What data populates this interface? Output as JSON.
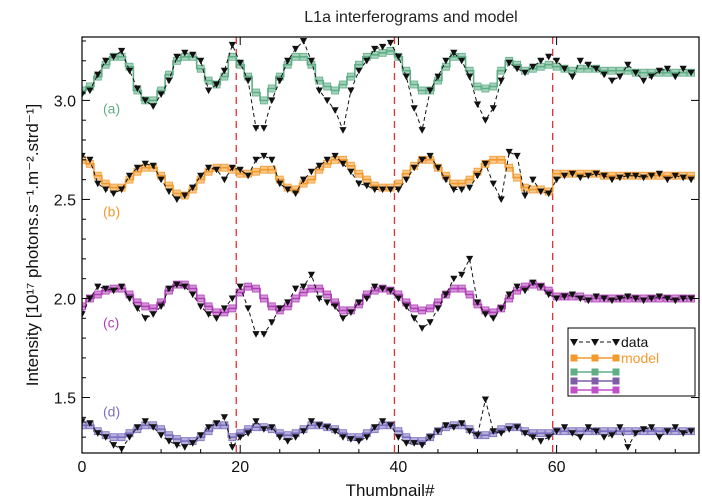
{
  "chart_data": {
    "type": "line",
    "title": "L1a interferograms and model",
    "xlabel": "Thumbnail#",
    "ylabel": "Intensity [10¹⁷ photons.s⁻¹.m⁻².strd⁻¹]",
    "xlim": [
      0,
      78
    ],
    "ylim": [
      1.22,
      3.32
    ],
    "x_ticks": [
      0,
      20,
      40,
      60
    ],
    "x_tick_labels": [
      "0",
      "20",
      "40",
      "60"
    ],
    "y_ticks": [
      1.5,
      2.0,
      2.5,
      3.0
    ],
    "y_tick_labels": [
      "1.5",
      "2.0",
      "2.5",
      "3.0"
    ],
    "vlines": [
      19.5,
      39.5,
      59.5
    ],
    "vline_color": "#e03030",
    "legend": {
      "placement": "right",
      "entries": [
        {
          "label": "data",
          "color": "#111111",
          "style": "dashed-triangle"
        },
        {
          "label": "model",
          "color": "#f39a2d",
          "style": "solid-square"
        },
        {
          "label": "",
          "color": "#5fae86",
          "style": "solid-square"
        },
        {
          "label": "",
          "color": "#7d5ca8",
          "style": "solid-square"
        },
        {
          "label": "",
          "color": "#c050c8",
          "style": "solid-square"
        }
      ]
    },
    "series": [
      {
        "tag": "(a)",
        "tag_y": 2.96,
        "color": "#5fae86",
        "model": [
          3.05,
          3.07,
          3.12,
          3.18,
          3.22,
          3.22,
          3.17,
          3.05,
          3.0,
          3.0,
          3.05,
          3.13,
          3.2,
          3.22,
          3.22,
          3.16,
          3.1,
          3.08,
          3.12,
          3.22,
          3.18,
          3.12,
          3.04,
          3.0,
          3.06,
          3.12,
          3.18,
          3.22,
          3.22,
          3.18,
          3.1,
          3.07,
          3.05,
          3.08,
          3.12,
          3.18,
          3.22,
          3.23,
          3.24,
          3.25,
          3.22,
          3.15,
          3.08,
          3.05,
          3.05,
          3.1,
          3.17,
          3.22,
          3.22,
          3.15,
          3.07,
          3.06,
          3.07,
          3.15,
          3.2,
          3.18,
          3.15,
          3.16,
          3.17,
          3.18,
          3.17,
          3.16,
          3.15,
          3.16,
          3.16,
          3.16,
          3.15,
          3.15,
          3.15,
          3.15,
          3.14,
          3.14,
          3.14,
          3.14,
          3.14,
          3.14,
          3.14,
          3.14
        ],
        "data": [
          3.03,
          3.05,
          3.13,
          3.2,
          3.22,
          3.25,
          3.15,
          3.06,
          3.0,
          2.97,
          3.03,
          3.1,
          3.22,
          3.24,
          3.23,
          3.2,
          3.05,
          3.08,
          3.15,
          3.28,
          3.19,
          3.1,
          2.86,
          2.86,
          3.0,
          3.1,
          3.2,
          3.26,
          3.3,
          3.2,
          3.05,
          3.0,
          2.95,
          2.85,
          3.05,
          3.15,
          3.2,
          3.26,
          3.27,
          3.29,
          3.22,
          3.12,
          2.96,
          2.85,
          3.05,
          3.12,
          3.2,
          3.24,
          3.2,
          3.12,
          2.98,
          2.9,
          2.96,
          3.1,
          3.19,
          3.16,
          3.14,
          3.17,
          3.2,
          3.22,
          3.2,
          3.16,
          3.12,
          3.2,
          3.18,
          3.16,
          3.13,
          3.1,
          3.12,
          3.18,
          3.14,
          3.1,
          3.12,
          3.15,
          3.16,
          3.12,
          3.16,
          3.14
        ]
      },
      {
        "tag": "(b)",
        "tag_y": 2.44,
        "color": "#f39a2d",
        "model": [
          2.7,
          2.68,
          2.62,
          2.58,
          2.56,
          2.56,
          2.6,
          2.64,
          2.66,
          2.66,
          2.62,
          2.57,
          2.53,
          2.52,
          2.55,
          2.6,
          2.64,
          2.66,
          2.66,
          2.65,
          2.63,
          2.63,
          2.64,
          2.65,
          2.65,
          2.6,
          2.56,
          2.55,
          2.58,
          2.6,
          2.65,
          2.68,
          2.7,
          2.7,
          2.67,
          2.63,
          2.6,
          2.57,
          2.56,
          2.56,
          2.58,
          2.63,
          2.67,
          2.7,
          2.7,
          2.66,
          2.62,
          2.58,
          2.58,
          2.6,
          2.64,
          2.68,
          2.7,
          2.7,
          2.66,
          2.61,
          2.56,
          2.55,
          2.55,
          2.54,
          2.63,
          2.63,
          2.63,
          2.63,
          2.63,
          2.63,
          2.62,
          2.62,
          2.62,
          2.62,
          2.62,
          2.62,
          2.62,
          2.62,
          2.62,
          2.62,
          2.62,
          2.62
        ],
        "data": [
          2.72,
          2.7,
          2.58,
          2.55,
          2.53,
          2.55,
          2.62,
          2.66,
          2.68,
          2.67,
          2.6,
          2.54,
          2.5,
          2.52,
          2.56,
          2.62,
          2.66,
          2.65,
          2.6,
          2.66,
          2.65,
          2.62,
          2.7,
          2.72,
          2.7,
          2.58,
          2.55,
          2.53,
          2.6,
          2.64,
          2.67,
          2.7,
          2.72,
          2.68,
          2.64,
          2.58,
          2.57,
          2.55,
          2.55,
          2.55,
          2.55,
          2.6,
          2.66,
          2.7,
          2.72,
          2.66,
          2.6,
          2.55,
          2.55,
          2.56,
          2.62,
          2.68,
          2.58,
          2.5,
          2.74,
          2.72,
          2.52,
          2.6,
          2.54,
          2.53,
          2.6,
          2.62,
          2.63,
          2.61,
          2.62,
          2.63,
          2.62,
          2.6,
          2.61,
          2.62,
          2.62,
          2.61,
          2.62,
          2.63,
          2.6,
          2.62,
          2.61,
          2.6
        ]
      },
      {
        "tag": "(c)",
        "tag_y": 1.88,
        "color": "#b040b8",
        "model": [
          1.96,
          2.0,
          2.02,
          2.04,
          2.05,
          2.05,
          2.02,
          1.98,
          1.96,
          1.95,
          1.98,
          2.04,
          2.07,
          2.07,
          2.05,
          2.0,
          1.96,
          1.93,
          1.93,
          1.95,
          2.03,
          2.06,
          2.05,
          2.0,
          1.96,
          1.94,
          1.96,
          2.0,
          2.03,
          2.05,
          2.05,
          2.02,
          1.98,
          1.94,
          1.94,
          1.97,
          2.02,
          2.04,
          2.05,
          2.04,
          2.02,
          1.98,
          1.95,
          1.94,
          1.95,
          1.98,
          2.02,
          2.05,
          2.05,
          2.02,
          1.97,
          1.94,
          1.93,
          1.95,
          2.0,
          2.04,
          2.06,
          2.07,
          2.06,
          2.04,
          2.01,
          2.01,
          2.01,
          2.01,
          2.0,
          2.0,
          2.0,
          2.0,
          2.0,
          2.0,
          2.0,
          2.0,
          2.0,
          2.0,
          2.0,
          2.0,
          2.0,
          2.0
        ],
        "data": [
          1.92,
          2.0,
          2.06,
          2.05,
          2.04,
          2.06,
          2.0,
          1.95,
          1.9,
          1.92,
          1.96,
          2.05,
          2.07,
          2.06,
          2.02,
          1.96,
          1.92,
          1.9,
          1.95,
          2.0,
          2.06,
          1.95,
          1.82,
          1.82,
          1.88,
          1.95,
          1.98,
          2.05,
          2.06,
          2.12,
          2.0,
          1.98,
          1.96,
          1.9,
          1.93,
          1.98,
          2.0,
          2.06,
          2.05,
          2.04,
          2.0,
          1.96,
          1.9,
          1.85,
          1.88,
          1.95,
          2.02,
          2.1,
          2.12,
          2.2,
          1.98,
          1.92,
          1.9,
          1.95,
          2.02,
          2.06,
          2.04,
          2.08,
          2.06,
          2.02,
          2.0,
          2.01,
          2.02,
          2.0,
          1.99,
          2.01,
          2.0,
          1.99,
          2.0,
          2.01,
          2.0,
          1.99,
          2.0,
          2.01,
          2.0,
          1.99,
          2.0,
          2.0
        ]
      },
      {
        "tag": "(d)",
        "tag_y": 1.43,
        "color": "#7d6fc0",
        "model": [
          1.36,
          1.36,
          1.33,
          1.31,
          1.3,
          1.3,
          1.32,
          1.34,
          1.36,
          1.36,
          1.34,
          1.31,
          1.29,
          1.28,
          1.28,
          1.3,
          1.33,
          1.36,
          1.36,
          1.3,
          1.32,
          1.34,
          1.35,
          1.35,
          1.34,
          1.32,
          1.31,
          1.32,
          1.34,
          1.36,
          1.36,
          1.35,
          1.34,
          1.32,
          1.3,
          1.3,
          1.32,
          1.34,
          1.36,
          1.36,
          1.33,
          1.3,
          1.28,
          1.28,
          1.3,
          1.33,
          1.35,
          1.36,
          1.36,
          1.34,
          1.31,
          1.31,
          1.32,
          1.34,
          1.35,
          1.35,
          1.33,
          1.32,
          1.32,
          1.32,
          1.33,
          1.33,
          1.33,
          1.33,
          1.33,
          1.33,
          1.33,
          1.33,
          1.33,
          1.33,
          1.33,
          1.33,
          1.33,
          1.33,
          1.33,
          1.33,
          1.33,
          1.33
        ],
        "data": [
          1.38,
          1.37,
          1.32,
          1.3,
          1.26,
          1.24,
          1.3,
          1.35,
          1.38,
          1.35,
          1.31,
          1.28,
          1.26,
          1.25,
          1.27,
          1.31,
          1.35,
          1.37,
          1.4,
          1.25,
          1.3,
          1.32,
          1.38,
          1.34,
          1.35,
          1.3,
          1.28,
          1.3,
          1.33,
          1.38,
          1.36,
          1.35,
          1.33,
          1.3,
          1.29,
          1.28,
          1.3,
          1.35,
          1.38,
          1.36,
          1.3,
          1.27,
          1.27,
          1.26,
          1.3,
          1.33,
          1.36,
          1.35,
          1.37,
          1.33,
          1.31,
          1.49,
          1.33,
          1.32,
          1.34,
          1.35,
          1.32,
          1.3,
          1.28,
          1.3,
          1.33,
          1.35,
          1.32,
          1.3,
          1.35,
          1.33,
          1.3,
          1.31,
          1.35,
          1.25,
          1.32,
          1.34,
          1.35,
          1.3,
          1.33,
          1.35,
          1.32,
          1.33
        ]
      }
    ]
  }
}
